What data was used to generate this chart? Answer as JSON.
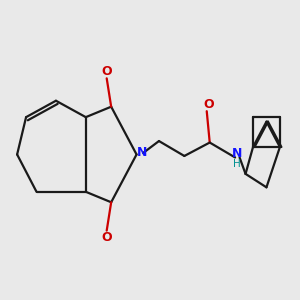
{
  "bg_color": "#e9e9e9",
  "line_color": "#1a1a1a",
  "N_color": "#1414ff",
  "O_color": "#cc0000",
  "H_color": "#009090",
  "line_width": 1.6,
  "font_size": 9.0,
  "xlim": [
    0,
    10
  ],
  "ylim": [
    1.5,
    9.0
  ]
}
